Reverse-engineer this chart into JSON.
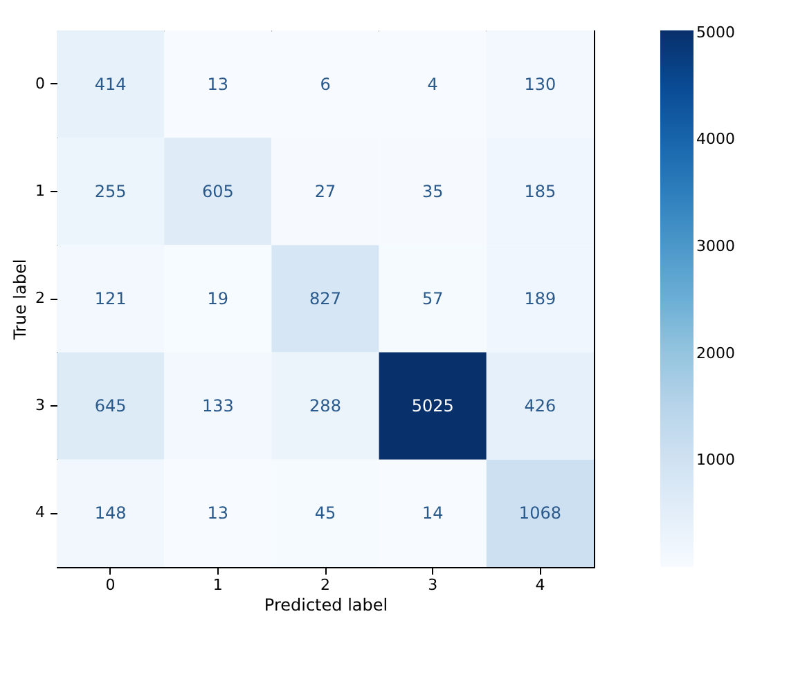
{
  "chart_data": {
    "type": "heatmap",
    "xlabel": "Predicted label",
    "ylabel": "True label",
    "categories": [
      "0",
      "1",
      "2",
      "3",
      "4"
    ],
    "y_categories": [
      "0",
      "1",
      "2",
      "3",
      "4"
    ],
    "cells": [
      [
        414,
        13,
        6,
        4,
        130
      ],
      [
        255,
        605,
        27,
        35,
        185
      ],
      [
        121,
        19,
        827,
        57,
        189
      ],
      [
        645,
        133,
        288,
        5025,
        426
      ],
      [
        148,
        13,
        45,
        14,
        1068
      ]
    ],
    "data_labels": true,
    "clim": [
      4,
      5025
    ],
    "cticks": [
      1000,
      2000,
      3000,
      4000,
      5000
    ]
  }
}
